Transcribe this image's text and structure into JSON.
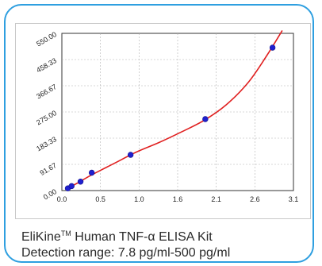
{
  "chart_data": {
    "type": "scatter",
    "x_ticks": [
      "0.0",
      "0.5",
      "1.0",
      "1.6",
      "2.1",
      "2.6",
      "3.1"
    ],
    "y_ticks": [
      "0.00",
      "91.67",
      "183.33",
      "275.00",
      "366.67",
      "458.33",
      "550.00"
    ],
    "xlim": [
      0,
      3.1
    ],
    "ylim": [
      0,
      550
    ],
    "grid": true,
    "points": [
      {
        "x": 0.08,
        "y": 7.8
      },
      {
        "x": 0.13,
        "y": 15.6
      },
      {
        "x": 0.25,
        "y": 31.25
      },
      {
        "x": 0.4,
        "y": 62.5
      },
      {
        "x": 0.92,
        "y": 125
      },
      {
        "x": 1.92,
        "y": 250
      },
      {
        "x": 2.82,
        "y": 500
      }
    ],
    "curve": [
      {
        "x": 0.05,
        "y": 5
      },
      {
        "x": 0.2,
        "y": 25
      },
      {
        "x": 0.4,
        "y": 55
      },
      {
        "x": 0.7,
        "y": 95
      },
      {
        "x": 1.0,
        "y": 135
      },
      {
        "x": 1.3,
        "y": 168
      },
      {
        "x": 1.6,
        "y": 205
      },
      {
        "x": 1.9,
        "y": 245
      },
      {
        "x": 2.2,
        "y": 300
      },
      {
        "x": 2.5,
        "y": 380
      },
      {
        "x": 2.75,
        "y": 475
      },
      {
        "x": 2.95,
        "y": 560
      }
    ],
    "point_color": "#2020d0",
    "curve_color": "#e02020"
  },
  "caption": {
    "product_name_prefix": "EliKine",
    "trademark": "TM",
    "product_name_rest": " Human TNF-α ELISA Kit",
    "detection_range": "Detection range: 7.8 pg/ml-500 pg/ml"
  },
  "colors": {
    "card_border": "#2e9fe0"
  }
}
